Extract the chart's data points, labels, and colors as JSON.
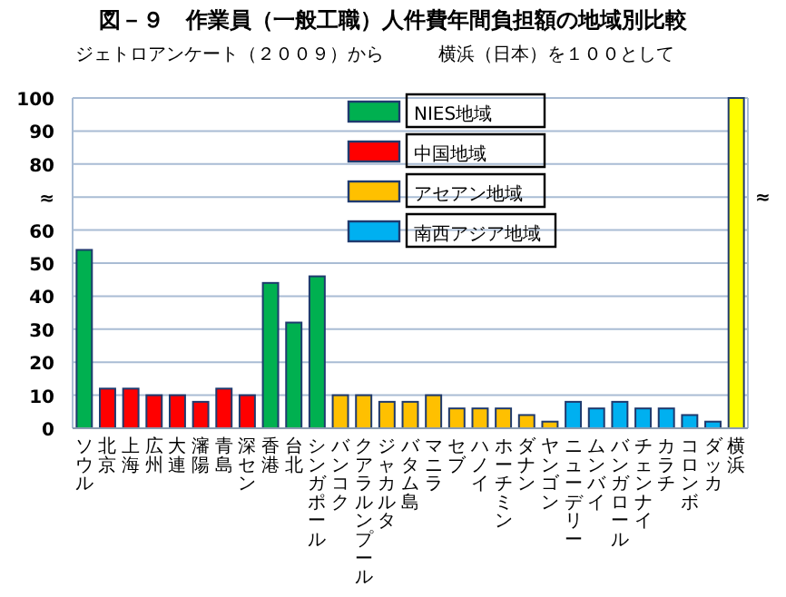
{
  "chart_data": {
    "type": "bar",
    "title": "図－９　作業員（一般工職）人件費年間負担額の地域別比較",
    "subtitle": "ジェトロアンケート（２００９）から　　　横浜（日本）を１００として",
    "categories": [
      "ソウル",
      "北京",
      "上海",
      "広州",
      "大連",
      "瀋陽",
      "青島",
      "深セン",
      "香港",
      "台北",
      "シンガポール",
      "バンコク",
      "クアラルンプール",
      "ジャカルタ",
      "バタム島",
      "マニラ",
      "セブ",
      "ハノイ",
      "ホーチミン",
      "ダナン",
      "ヤンゴン",
      "ニューデリー",
      "ムンバイ",
      "バンガロール",
      "チェンナイ",
      "カラチ",
      "コロンボ",
      "ダッカ",
      "横浜"
    ],
    "series": [
      {
        "name": "NIES地域",
        "color": "#00b050",
        "values": [
          54,
          null,
          null,
          null,
          null,
          null,
          null,
          null,
          44,
          32,
          46,
          null,
          null,
          null,
          null,
          null,
          null,
          null,
          null,
          null,
          null,
          null,
          null,
          null,
          null,
          null,
          null,
          null,
          null
        ]
      },
      {
        "name": "中国地域",
        "color": "#ff0000",
        "values": [
          null,
          12,
          12,
          10,
          10,
          8,
          12,
          10,
          null,
          null,
          null,
          null,
          null,
          null,
          null,
          null,
          null,
          null,
          null,
          null,
          null,
          null,
          null,
          null,
          null,
          null,
          null,
          null,
          null
        ]
      },
      {
        "name": "アセアン地域",
        "color": "#ffc000",
        "values": [
          null,
          null,
          null,
          null,
          null,
          null,
          null,
          null,
          null,
          null,
          null,
          10,
          10,
          8,
          8,
          10,
          6,
          6,
          6,
          4,
          2,
          null,
          null,
          null,
          null,
          null,
          null,
          null,
          null
        ]
      },
      {
        "name": "南西アジア地域",
        "color": "#00b0f0",
        "values": [
          null,
          null,
          null,
          null,
          null,
          null,
          null,
          null,
          null,
          null,
          null,
          null,
          null,
          null,
          null,
          null,
          null,
          null,
          null,
          null,
          null,
          8,
          6,
          8,
          6,
          6,
          4,
          2,
          null
        ]
      },
      {
        "color": "#ffff00",
        "values": [
          null,
          null,
          null,
          null,
          null,
          null,
          null,
          null,
          null,
          null,
          null,
          null,
          null,
          null,
          null,
          null,
          null,
          null,
          null,
          null,
          null,
          null,
          null,
          null,
          null,
          null,
          null,
          null,
          100
        ]
      }
    ],
    "ylim": [
      0,
      100
    ],
    "yticks": [
      0,
      10,
      20,
      30,
      40,
      50,
      60,
      {
        "value": 70,
        "label": "≈"
      },
      80,
      90,
      100
    ],
    "annotations": [
      "≈"
    ],
    "grid": "y",
    "legend": "top"
  }
}
